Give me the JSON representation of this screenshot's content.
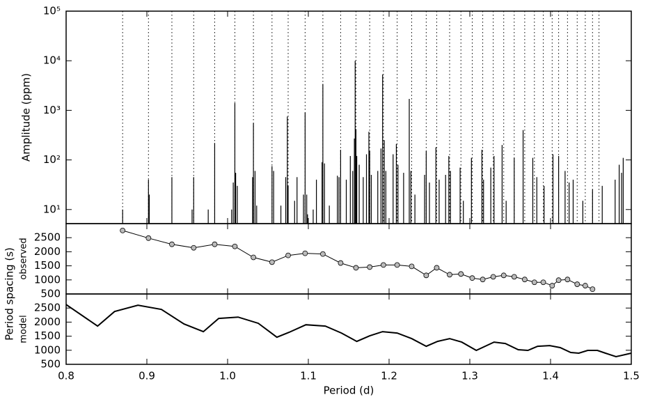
{
  "chart_data": [
    {
      "type": "stem",
      "ylabel": "Amplitude (ppm)",
      "log_y": true,
      "color": "#000000",
      "vline_color": "#000000",
      "xlim": [
        0.8,
        1.5
      ],
      "ylim": [
        5.2,
        100000
      ],
      "yticks": [
        {
          "value": 10,
          "label": "10¹"
        },
        {
          "value": 100,
          "label": "10²"
        },
        {
          "value": 1000,
          "label": "10³"
        },
        {
          "value": 10000,
          "label": "10⁴"
        },
        {
          "value": 100000,
          "label": "10⁵"
        }
      ],
      "vlines": [
        0.87,
        0.902,
        0.931,
        0.958,
        0.984,
        1.009,
        1.032,
        1.055,
        1.075,
        1.096,
        1.118,
        1.14,
        1.159,
        1.176,
        1.193,
        1.21,
        1.228,
        1.246,
        1.259,
        1.275,
        1.289,
        1.303,
        1.316,
        1.329,
        1.342,
        1.355,
        1.368,
        1.38,
        1.391,
        1.402,
        1.41,
        1.421,
        1.433,
        1.443,
        1.452,
        1.46
      ],
      "x": [
        0.87,
        0.902,
        0.903,
        0.931,
        0.956,
        0.958,
        0.976,
        0.984,
        1.005,
        1.007,
        1.009,
        1.01,
        1.012,
        1.031,
        1.032,
        1.034,
        1.036,
        1.055,
        1.057,
        1.066,
        1.072,
        1.074,
        1.075,
        1.083,
        1.086,
        1.094,
        1.096,
        1.098,
        1.099,
        1.106,
        1.11,
        1.117,
        1.118,
        1.12,
        1.126,
        1.136,
        1.138,
        1.14,
        1.147,
        1.152,
        1.155,
        1.157,
        1.158,
        1.159,
        1.16,
        1.163,
        1.168,
        1.172,
        1.175,
        1.176,
        1.178,
        1.186,
        1.19,
        1.192,
        1.194,
        1.196,
        1.205,
        1.209,
        1.211,
        1.218,
        1.225,
        1.227,
        1.232,
        1.244,
        1.246,
        1.25,
        1.258,
        1.262,
        1.27,
        1.274,
        1.276,
        1.288,
        1.292,
        1.302,
        1.315,
        1.317,
        1.326,
        1.33,
        1.34,
        1.345,
        1.355,
        1.366,
        1.378,
        1.383,
        1.392,
        1.403,
        1.41,
        1.418,
        1.423,
        1.428,
        1.44,
        1.452,
        1.464,
        1.48,
        1.485,
        1.488,
        1.49
      ],
      "values": [
        10,
        40,
        20,
        45,
        10,
        45,
        10,
        220,
        10,
        35,
        1400,
        55,
        30,
        45,
        550,
        60,
        12,
        75,
        60,
        12,
        45,
        750,
        30,
        15,
        45,
        20,
        900,
        20,
        8,
        10,
        40,
        90,
        3400,
        85,
        12,
        48,
        45,
        160,
        40,
        120,
        60,
        270,
        10000,
        420,
        120,
        80,
        45,
        130,
        370,
        150,
        50,
        60,
        170,
        5300,
        250,
        60,
        130,
        210,
        80,
        55,
        1700,
        60,
        20,
        50,
        150,
        35,
        180,
        40,
        50,
        120,
        60,
        70,
        15,
        110,
        160,
        40,
        70,
        120,
        200,
        15,
        110,
        400,
        110,
        45,
        30,
        130,
        120,
        60,
        35,
        40,
        15,
        25,
        30,
        40,
        80,
        55,
        110
      ]
    },
    {
      "type": "line",
      "ylabel": "observed",
      "group_ylabel": "Period spacing (s)",
      "color": "#000000",
      "marker_color": "#bbbbbb",
      "xlim": [
        0.8,
        1.5
      ],
      "ylim": [
        500,
        3000
      ],
      "yticks": [
        500,
        1000,
        1500,
        2000,
        2500
      ],
      "x": [
        0.87,
        0.902,
        0.931,
        0.958,
        0.984,
        1.009,
        1.032,
        1.055,
        1.075,
        1.096,
        1.118,
        1.14,
        1.159,
        1.176,
        1.193,
        1.21,
        1.228,
        1.246,
        1.259,
        1.275,
        1.289,
        1.303,
        1.316,
        1.329,
        1.342,
        1.355,
        1.368,
        1.38,
        1.391,
        1.402,
        1.41,
        1.421,
        1.433,
        1.443,
        1.452
      ],
      "values": [
        2755,
        2485,
        2265,
        2140,
        2265,
        2190,
        1800,
        1630,
        1870,
        1945,
        1920,
        1600,
        1430,
        1455,
        1530,
        1530,
        1480,
        1160,
        1430,
        1185,
        1210,
        1065,
        1015,
        1110,
        1160,
        1110,
        1015,
        915,
        915,
        795,
        990,
        1015,
        845,
        795,
        670
      ]
    },
    {
      "type": "line",
      "ylabel": "model",
      "xlabel": "Period (d)",
      "color": "#000000",
      "xlim": [
        0.8,
        1.5
      ],
      "ylim": [
        500,
        3000
      ],
      "yticks": [
        500,
        1000,
        1500,
        2000,
        2500
      ],
      "xticks": [
        0.8,
        0.9,
        {
          "value": 1,
          "label": "1.0"
        },
        1.1,
        1.2,
        1.3,
        1.4,
        1.5
      ],
      "x": [
        0.8,
        0.839,
        0.86,
        0.889,
        0.918,
        0.946,
        0.97,
        0.989,
        1.013,
        1.038,
        1.061,
        1.076,
        1.097,
        1.121,
        1.141,
        1.16,
        1.176,
        1.192,
        1.21,
        1.228,
        1.246,
        1.26,
        1.275,
        1.29,
        1.308,
        1.33,
        1.344,
        1.36,
        1.372,
        1.384,
        1.399,
        1.412,
        1.425,
        1.435,
        1.446,
        1.458,
        1.468,
        1.481,
        1.5
      ],
      "values": [
        2623,
        1858,
        2377,
        2599,
        2451,
        1932,
        1660,
        2130,
        2179,
        1957,
        1463,
        1636,
        1907,
        1858,
        1611,
        1315,
        1512,
        1660,
        1611,
        1414,
        1142,
        1315,
        1414,
        1290,
        994,
        1290,
        1241,
        1019,
        994,
        1142,
        1167,
        1093,
        920,
        895,
        994,
        994,
        895,
        772,
        895
      ]
    }
  ]
}
